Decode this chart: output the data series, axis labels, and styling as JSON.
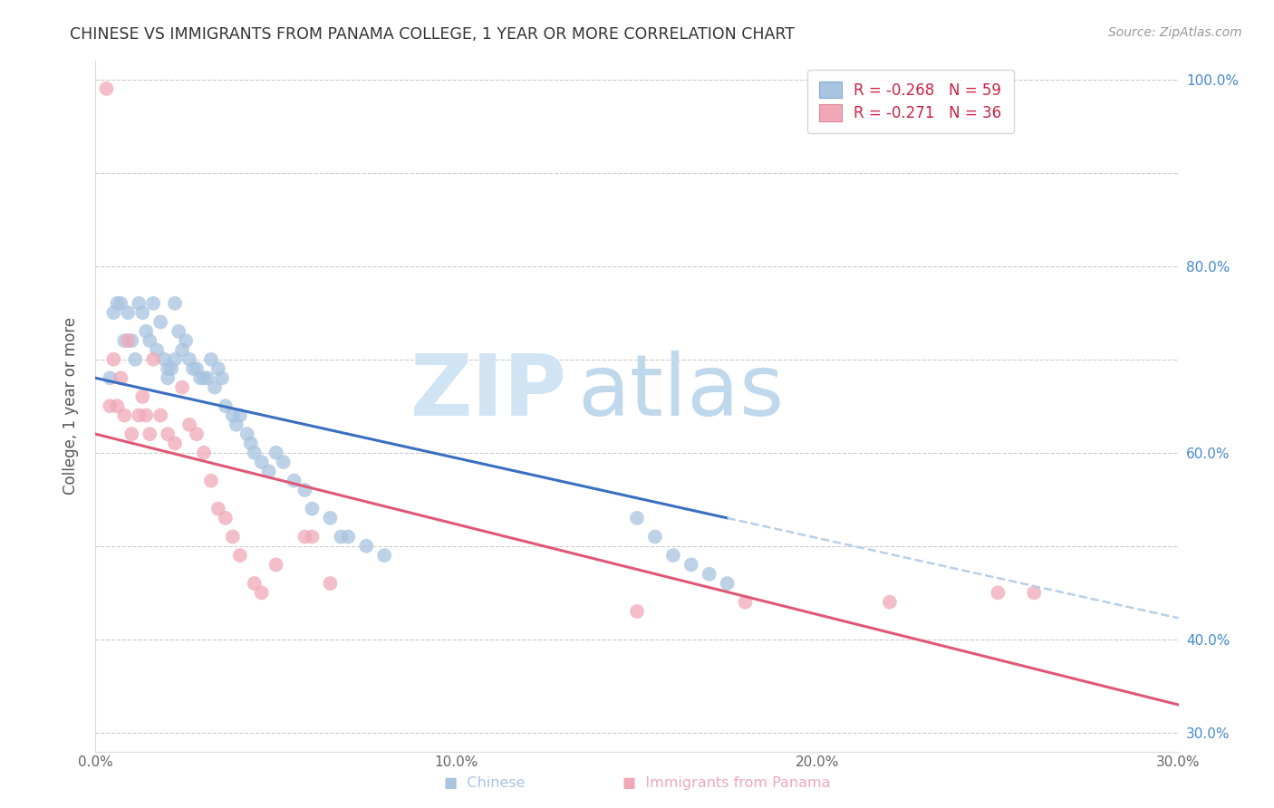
{
  "title": "CHINESE VS IMMIGRANTS FROM PANAMA COLLEGE, 1 YEAR OR MORE CORRELATION CHART",
  "source": "Source: ZipAtlas.com",
  "ylabel": "College, 1 year or more",
  "xlim": [
    0.0,
    0.3
  ],
  "ylim": [
    0.28,
    1.02
  ],
  "right_ytick_values": [
    0.3,
    0.4,
    0.6,
    0.8,
    1.0
  ],
  "right_ytick_labels": [
    "30.0%",
    "40.0%",
    "60.0%",
    "80.0%",
    "100.0%"
  ],
  "xtick_values": [
    0.0,
    0.1,
    0.2,
    0.3
  ],
  "xtick_labels": [
    "0.0%",
    "10.0%",
    "20.0%",
    "30.0%"
  ],
  "htick_values": [
    0.3,
    0.4,
    0.5,
    0.6,
    0.7,
    0.8,
    0.9,
    1.0
  ],
  "chinese_R": -0.268,
  "chinese_N": 59,
  "panama_R": -0.271,
  "panama_N": 36,
  "chinese_dot_color": "#a8c4e0",
  "panama_dot_color": "#f0a8b8",
  "chinese_line_color": "#3a6fc0",
  "panama_line_color": "#e05878",
  "chinese_dash_color": "#b8cfe8",
  "fig_width": 14.06,
  "fig_height": 8.92,
  "dpi": 100,
  "chinese_x": [
    0.004,
    0.005,
    0.006,
    0.007,
    0.008,
    0.009,
    0.01,
    0.011,
    0.012,
    0.013,
    0.014,
    0.015,
    0.016,
    0.017,
    0.018,
    0.019,
    0.02,
    0.02,
    0.021,
    0.022,
    0.022,
    0.023,
    0.024,
    0.025,
    0.026,
    0.027,
    0.028,
    0.029,
    0.03,
    0.031,
    0.032,
    0.033,
    0.034,
    0.035,
    0.036,
    0.038,
    0.039,
    0.04,
    0.042,
    0.043,
    0.044,
    0.046,
    0.048,
    0.05,
    0.052,
    0.055,
    0.058,
    0.06,
    0.065,
    0.068,
    0.07,
    0.075,
    0.08,
    0.15,
    0.155,
    0.16,
    0.165,
    0.17,
    0.175
  ],
  "chinese_y": [
    0.68,
    0.75,
    0.76,
    0.76,
    0.72,
    0.75,
    0.72,
    0.7,
    0.76,
    0.75,
    0.73,
    0.72,
    0.76,
    0.71,
    0.74,
    0.7,
    0.69,
    0.68,
    0.69,
    0.76,
    0.7,
    0.73,
    0.71,
    0.72,
    0.7,
    0.69,
    0.69,
    0.68,
    0.68,
    0.68,
    0.7,
    0.67,
    0.69,
    0.68,
    0.65,
    0.64,
    0.63,
    0.64,
    0.62,
    0.61,
    0.6,
    0.59,
    0.58,
    0.6,
    0.59,
    0.57,
    0.56,
    0.54,
    0.53,
    0.51,
    0.51,
    0.5,
    0.49,
    0.53,
    0.51,
    0.49,
    0.48,
    0.47,
    0.46
  ],
  "panama_x": [
    0.003,
    0.004,
    0.005,
    0.006,
    0.007,
    0.008,
    0.009,
    0.01,
    0.012,
    0.013,
    0.014,
    0.015,
    0.016,
    0.018,
    0.02,
    0.022,
    0.024,
    0.026,
    0.028,
    0.03,
    0.032,
    0.034,
    0.036,
    0.038,
    0.04,
    0.044,
    0.046,
    0.05,
    0.058,
    0.06,
    0.065,
    0.15,
    0.18,
    0.22,
    0.25,
    0.26
  ],
  "panama_y": [
    0.99,
    0.65,
    0.7,
    0.65,
    0.68,
    0.64,
    0.72,
    0.62,
    0.64,
    0.66,
    0.64,
    0.62,
    0.7,
    0.64,
    0.62,
    0.61,
    0.67,
    0.63,
    0.62,
    0.6,
    0.57,
    0.54,
    0.53,
    0.51,
    0.49,
    0.46,
    0.45,
    0.48,
    0.51,
    0.51,
    0.46,
    0.43,
    0.44,
    0.44,
    0.45,
    0.45
  ],
  "ch_line_x0": 0.0,
  "ch_line_y0": 0.68,
  "ch_line_x1": 0.175,
  "ch_line_y1": 0.53,
  "pa_line_x0": 0.0,
  "pa_line_y0": 0.62,
  "pa_line_x1": 0.3,
  "pa_line_y1": 0.33
}
